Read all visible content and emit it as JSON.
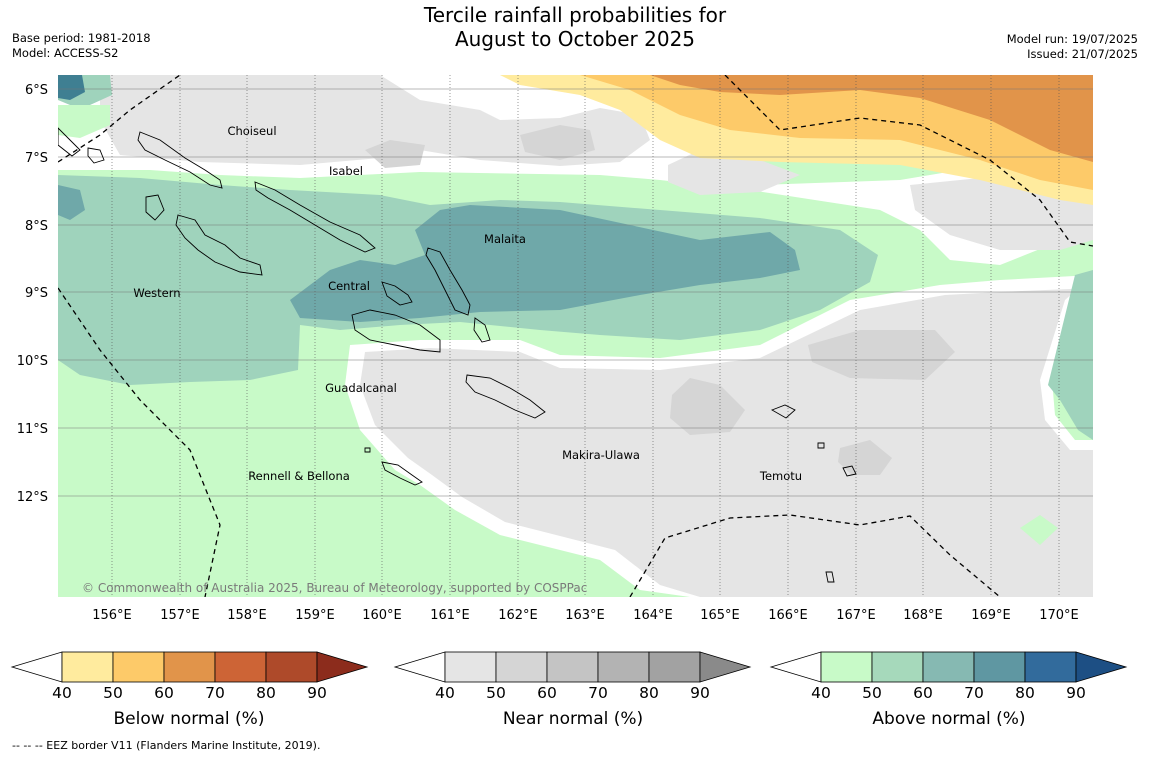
{
  "header": {
    "title_line1": "Tercile rainfall probabilities for",
    "title_line2": "August to October 2025",
    "base_period": "Base period: 1981-2018",
    "model": "Model: ACCESS-S2",
    "model_run": "Model run: 19/07/2025",
    "issued": "Issued: 21/07/2025"
  },
  "map": {
    "lat_labels": [
      "6°S",
      "7°S",
      "8°S",
      "9°S",
      "10°S",
      "11°S",
      "12°S"
    ],
    "lon_labels": [
      "156°E",
      "157°E",
      "158°E",
      "159°E",
      "160°E",
      "161°E",
      "162°E",
      "163°E",
      "164°E",
      "165°E",
      "166°E",
      "167°E",
      "168°E",
      "169°E",
      "170°E"
    ],
    "provinces": [
      "Choiseul",
      "Isabel",
      "Malaita",
      "Western",
      "Central",
      "Guadalcanal",
      "Makira-Ulawa",
      "Rennell & Bellona",
      "Temotu"
    ],
    "copyright": "© Commonwealth of Australia 2025, Bureau of Meteorology, supported by COSPPac",
    "colors": {
      "above40": "#c8fac8",
      "above50": "#9fd3bc",
      "above60": "#6fa8a9",
      "above70": "#3f7f92",
      "near40": "#e5e5e5",
      "near50": "#d5d5d5",
      "below40": "#ffeb9e",
      "below50": "#fdca69",
      "below60": "#e1944a",
      "blank": "#ffffff"
    }
  },
  "colorbars": [
    {
      "label": "Below normal (%)",
      "ticks": [
        "40",
        "50",
        "60",
        "70",
        "80",
        "90"
      ],
      "colors": [
        "#ffeb9e",
        "#fdca69",
        "#e1944a",
        "#cd6436",
        "#ae4a2a",
        "#8c2c1c"
      ]
    },
    {
      "label": "Near normal (%)",
      "ticks": [
        "40",
        "50",
        "60",
        "70",
        "80",
        "90"
      ],
      "colors": [
        "#e5e5e5",
        "#d5d5d5",
        "#c4c4c4",
        "#b3b3b3",
        "#a2a2a2",
        "#8a8a8a"
      ]
    },
    {
      "label": "Above normal (%)",
      "ticks": [
        "40",
        "50",
        "60",
        "70",
        "80",
        "90"
      ],
      "colors": [
        "#c8fac8",
        "#a6d9bb",
        "#86b9b2",
        "#5f97a2",
        "#326b9c",
        "#1d4f84"
      ]
    }
  ],
  "footnote": "--  --  -- EEZ border V11 (Flanders Marine Institute, 2019)."
}
